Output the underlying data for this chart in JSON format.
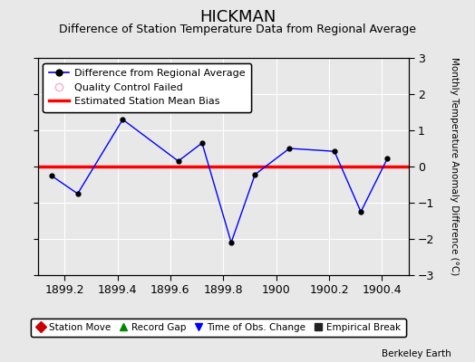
{
  "title": "HICKMAN",
  "subtitle": "Difference of Station Temperature Data from Regional Average",
  "ylabel_right": "Monthly Temperature Anomaly Difference (°C)",
  "background_color": "#e8e8e8",
  "plot_bg_color": "#e8e8e8",
  "bias_value": 0.0,
  "xlim": [
    1899.1,
    1900.5
  ],
  "ylim": [
    -3,
    3
  ],
  "xticks": [
    1899.2,
    1899.4,
    1899.6,
    1899.8,
    1900.0,
    1900.2,
    1900.4
  ],
  "xtick_labels": [
    "1899.2",
    "1899.4",
    "1899.6",
    "1899.8",
    "1900",
    "1900.2",
    "1900.4"
  ],
  "yticks": [
    -3,
    -2,
    -1,
    0,
    1,
    2,
    3
  ],
  "data_x": [
    1899.15,
    1899.25,
    1899.42,
    1899.63,
    1899.72,
    1899.83,
    1899.92,
    1900.05,
    1900.22,
    1900.32,
    1900.42
  ],
  "data_y": [
    -0.25,
    -0.75,
    1.3,
    0.15,
    0.65,
    -2.1,
    -0.22,
    0.5,
    0.42,
    -1.25,
    0.22
  ],
  "line_color": "#0000ff",
  "marker_color": "#000000",
  "bias_color": "#ff0000",
  "grid_color": "#ffffff",
  "legend1_label": "Difference from Regional Average",
  "legend2_label": "Quality Control Failed",
  "legend3_label": "Estimated Station Mean Bias",
  "qc_color": "#ffaacc",
  "bottom_legend": [
    "Station Move",
    "Record Gap",
    "Time of Obs. Change",
    "Empirical Break"
  ],
  "bottom_legend_colors": [
    "#cc0000",
    "#008800",
    "#0000ff",
    "#222222"
  ],
  "bottom_legend_markers": [
    "D",
    "^",
    "v",
    "s"
  ],
  "watermark": "Berkeley Earth",
  "title_fontsize": 13,
  "subtitle_fontsize": 9,
  "tick_fontsize": 9,
  "legend_fontsize": 8
}
